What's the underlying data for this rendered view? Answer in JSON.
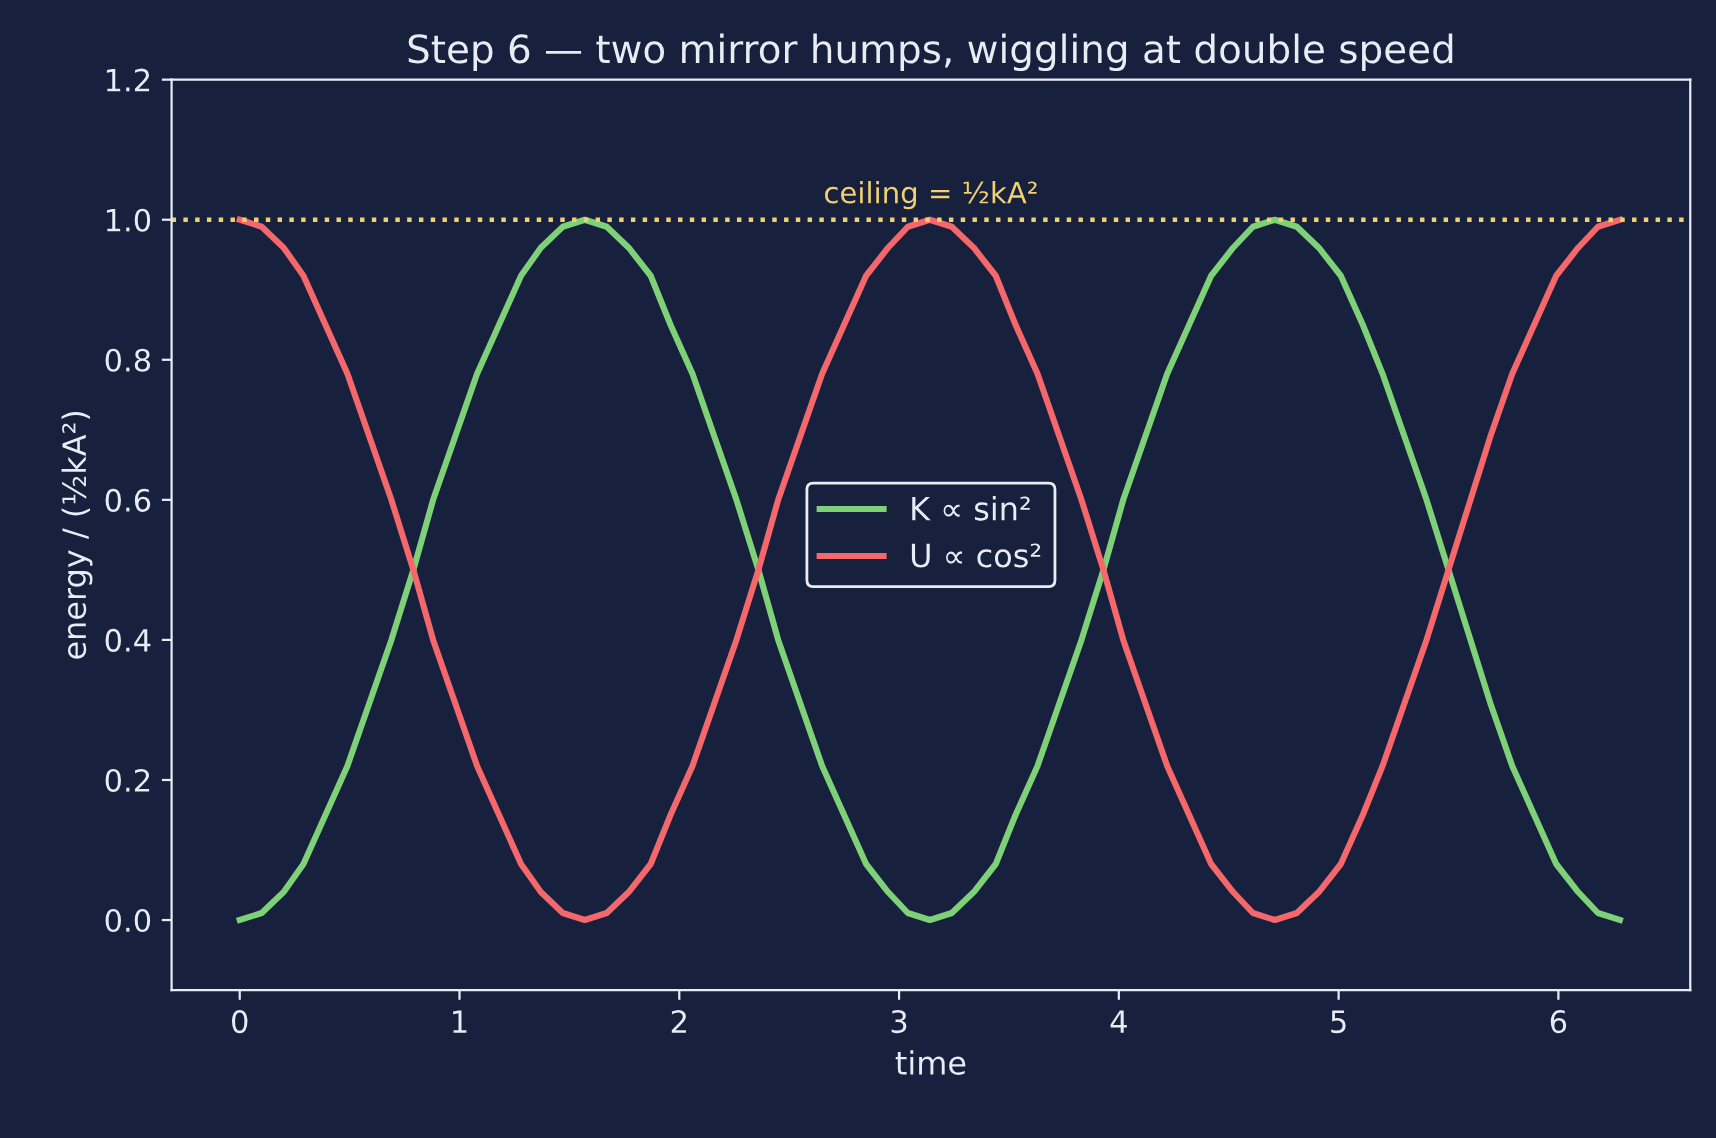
{
  "chart_data": {
    "type": "line",
    "title": "Step 6 — two mirror humps, wiggling at double speed",
    "xlabel": "time",
    "ylabel": "energy / (½kA²)",
    "x": [
      0,
      0.1,
      0.2,
      0.29,
      0.39,
      0.49,
      0.59,
      0.69,
      0.79,
      0.88,
      0.98,
      1.08,
      1.18,
      1.28,
      1.37,
      1.47,
      1.57,
      1.67,
      1.77,
      1.87,
      1.96,
      2.06,
      2.16,
      2.26,
      2.36,
      2.45,
      2.55,
      2.65,
      2.75,
      2.85,
      2.95,
      3.04,
      3.14,
      3.24,
      3.34,
      3.44,
      3.53,
      3.63,
      3.73,
      3.83,
      3.93,
      4.02,
      4.12,
      4.22,
      4.32,
      4.42,
      4.52,
      4.61,
      4.71,
      4.81,
      4.91,
      5.01,
      5.11,
      5.2,
      5.3,
      5.4,
      5.5,
      5.6,
      5.69,
      5.79,
      5.89,
      5.99,
      6.09,
      6.18,
      6.28
    ],
    "series": [
      {
        "name": "K ∝ sin²",
        "color": "#7fd177",
        "values": [
          0,
          0.01,
          0.04,
          0.08,
          0.15,
          0.22,
          0.31,
          0.4,
          0.5,
          0.6,
          0.69,
          0.78,
          0.85,
          0.92,
          0.96,
          0.99,
          1,
          0.99,
          0.96,
          0.92,
          0.85,
          0.78,
          0.69,
          0.6,
          0.5,
          0.4,
          0.31,
          0.22,
          0.15,
          0.08,
          0.04,
          0.01,
          0,
          0.01,
          0.04,
          0.08,
          0.15,
          0.22,
          0.31,
          0.4,
          0.5,
          0.6,
          0.69,
          0.78,
          0.85,
          0.92,
          0.96,
          0.99,
          1,
          0.99,
          0.96,
          0.92,
          0.85,
          0.78,
          0.69,
          0.6,
          0.5,
          0.4,
          0.31,
          0.22,
          0.15,
          0.08,
          0.04,
          0.01,
          0
        ]
      },
      {
        "name": "U ∝ cos²",
        "color": "#f4676b",
        "values": [
          1,
          0.99,
          0.96,
          0.92,
          0.85,
          0.78,
          0.69,
          0.6,
          0.5,
          0.4,
          0.31,
          0.22,
          0.15,
          0.08,
          0.04,
          0.01,
          0,
          0.01,
          0.04,
          0.08,
          0.15,
          0.22,
          0.31,
          0.4,
          0.5,
          0.6,
          0.69,
          0.78,
          0.85,
          0.92,
          0.96,
          0.99,
          1,
          0.99,
          0.96,
          0.92,
          0.85,
          0.78,
          0.69,
          0.6,
          0.5,
          0.4,
          0.31,
          0.22,
          0.15,
          0.08,
          0.04,
          0.01,
          0,
          0.01,
          0.04,
          0.08,
          0.15,
          0.22,
          0.31,
          0.4,
          0.5,
          0.6,
          0.69,
          0.78,
          0.85,
          0.92,
          0.96,
          0.99,
          1
        ]
      }
    ],
    "ref_lines": [
      {
        "axis": "y",
        "value": 1.0,
        "label": "ceiling = ½kA²",
        "color": "#f0d070",
        "line_style": "dotted"
      }
    ],
    "xlim": [
      -0.31,
      6.6
    ],
    "ylim": [
      -0.1,
      1.2
    ],
    "xticks": [
      0,
      1,
      2,
      3,
      4,
      5,
      6
    ],
    "yticks": [
      {
        "value": 0,
        "label": "0.0"
      },
      0.2,
      0.4,
      0.6,
      0.8,
      {
        "value": 1,
        "label": "1.0"
      },
      1.2
    ],
    "legend": "center",
    "grid": false,
    "marker": "none",
    "line_style": "solid"
  }
}
